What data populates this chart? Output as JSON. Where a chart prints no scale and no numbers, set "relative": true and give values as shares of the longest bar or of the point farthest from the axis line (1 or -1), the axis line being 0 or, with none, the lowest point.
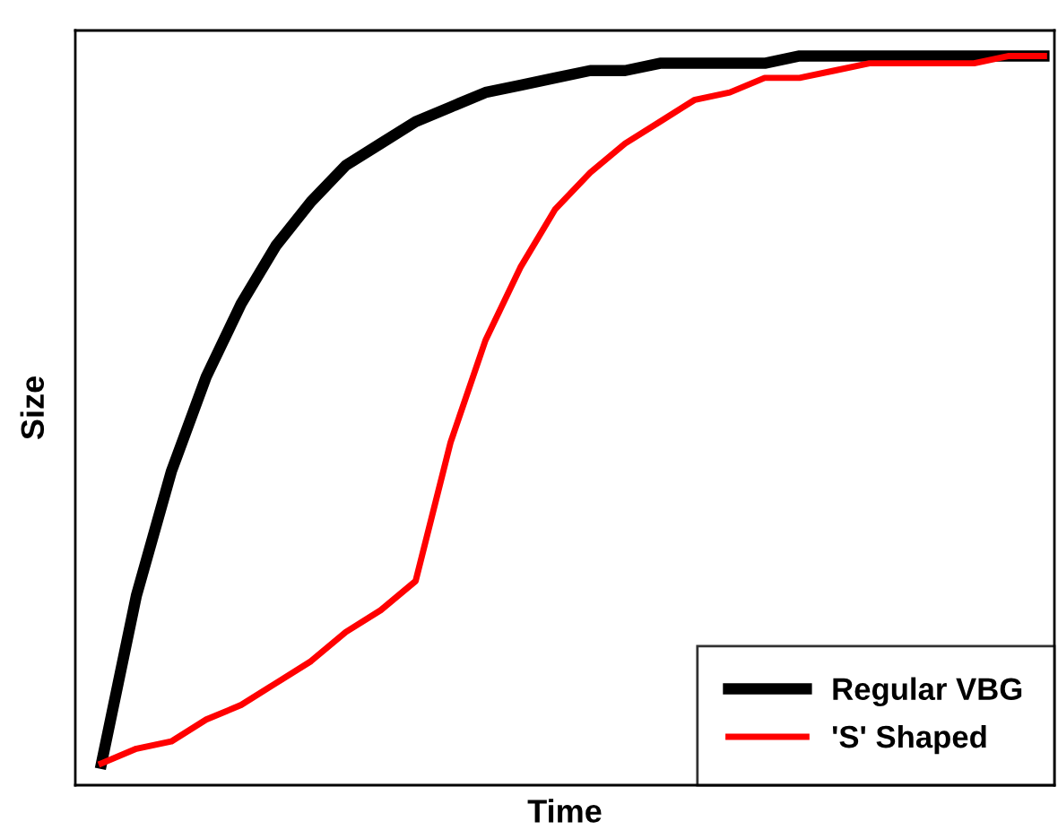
{
  "chart_data": {
    "type": "line",
    "relative": true,
    "xlabel": "Time",
    "ylabel": "Size",
    "legend": "bottom right",
    "grid": false,
    "marker": "none",
    "line_style": "solid",
    "categories": [
      null,
      null,
      null,
      null,
      null,
      null,
      null,
      null,
      null,
      null,
      null,
      null,
      null,
      null,
      null,
      null,
      null,
      null,
      null,
      null,
      null,
      null,
      null,
      null,
      null,
      null,
      null,
      null
    ],
    "series": [
      {
        "name": "Regular VBG",
        "color": "#000000",
        "values": [
          0.03,
          0.26,
          0.43,
          0.56,
          0.66,
          0.74,
          0.8,
          0.85,
          0.88,
          0.91,
          0.93,
          0.95,
          0.96,
          0.97,
          0.98,
          0.98,
          0.99,
          0.99,
          0.99,
          0.99,
          1.0,
          1.0,
          1.0,
          1.0,
          1.0,
          1.0,
          1.0,
          1.0
        ]
      },
      {
        "name": "'S' Shaped",
        "color": "#ff0000",
        "values": [
          0.03,
          0.05,
          0.06,
          0.09,
          0.11,
          0.14,
          0.17,
          0.21,
          0.24,
          0.28,
          0.47,
          0.61,
          0.71,
          0.79,
          0.84,
          0.88,
          0.91,
          0.94,
          0.95,
          0.97,
          0.97,
          0.98,
          0.99,
          0.99,
          0.99,
          0.99,
          1.0,
          1.0
        ]
      }
    ]
  }
}
